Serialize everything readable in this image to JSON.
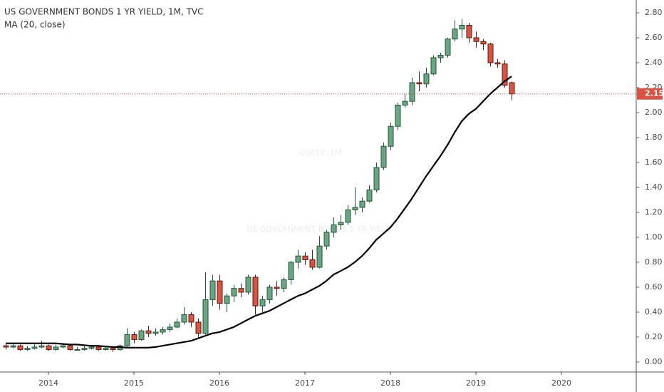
{
  "chart_data": {
    "type": "candlestick",
    "title": "US GOVERNMENT BONDS 1 YR YIELD, 1M, TVC",
    "watermark": [
      "US01Y, 1M",
      "US GOVERNMENT BONDS 1 YR YIELD"
    ],
    "x": [
      2013.5,
      2013.583,
      2013.667,
      2013.75,
      2013.833,
      2013.917,
      2014,
      2014.083,
      2014.167,
      2014.25,
      2014.333,
      2014.417,
      2014.5,
      2014.583,
      2014.667,
      2014.75,
      2014.833,
      2014.917,
      2015,
      2015.083,
      2015.167,
      2015.25,
      2015.333,
      2015.417,
      2015.5,
      2015.583,
      2015.667,
      2015.75,
      2015.833,
      2015.917,
      2016,
      2016.083,
      2016.167,
      2016.25,
      2016.333,
      2016.417,
      2016.5,
      2016.583,
      2016.667,
      2016.75,
      2016.833,
      2016.917,
      2017,
      2017.083,
      2017.167,
      2017.25,
      2017.333,
      2017.417,
      2017.5,
      2017.583,
      2017.667,
      2017.75,
      2017.833,
      2017.917,
      2018,
      2018.083,
      2018.167,
      2018.25,
      2018.333,
      2018.417,
      2018.5,
      2018.583,
      2018.667,
      2018.75,
      2018.833,
      2018.917,
      2019,
      2019.083,
      2019.167,
      2019.25,
      2019.333,
      2019.417
    ],
    "open": [
      0.13,
      0.12,
      0.13,
      0.1,
      0.11,
      0.12,
      0.13,
      0.1,
      0.12,
      0.13,
      0.1,
      0.1,
      0.11,
      0.12,
      0.1,
      0.11,
      0.1,
      0.13,
      0.22,
      0.18,
      0.25,
      0.23,
      0.24,
      0.26,
      0.28,
      0.32,
      0.38,
      0.32,
      0.23,
      0.5,
      0.65,
      0.47,
      0.53,
      0.59,
      0.56,
      0.68,
      0.45,
      0.5,
      0.6,
      0.59,
      0.66,
      0.8,
      0.85,
      0.82,
      0.76,
      0.93,
      1.04,
      1.1,
      1.12,
      1.22,
      1.24,
      1.29,
      1.38,
      1.56,
      1.73,
      1.89,
      2.06,
      2.09,
      2.24,
      2.23,
      2.31,
      2.44,
      2.46,
      2.59,
      2.67,
      2.7,
      2.6,
      2.57,
      2.55,
      2.4,
      2.39,
      2.24
    ],
    "high": [
      0.15,
      0.15,
      0.14,
      0.13,
      0.14,
      0.17,
      0.14,
      0.14,
      0.15,
      0.14,
      0.12,
      0.13,
      0.13,
      0.13,
      0.13,
      0.12,
      0.14,
      0.27,
      0.24,
      0.26,
      0.29,
      0.27,
      0.28,
      0.31,
      0.35,
      0.44,
      0.4,
      0.35,
      0.72,
      0.7,
      0.7,
      0.55,
      0.62,
      0.63,
      0.7,
      0.7,
      0.53,
      0.62,
      0.65,
      0.68,
      0.81,
      0.9,
      0.88,
      0.9,
      1.01,
      1.06,
      1.16,
      1.18,
      1.26,
      1.4,
      1.32,
      1.42,
      1.6,
      1.76,
      1.92,
      2.08,
      2.15,
      2.28,
      2.33,
      2.36,
      2.46,
      2.48,
      2.6,
      2.74,
      2.75,
      2.72,
      2.65,
      2.59,
      2.56,
      2.43,
      2.42,
      2.25
    ],
    "low": [
      0.1,
      0.11,
      0.09,
      0.09,
      0.1,
      0.11,
      0.09,
      0.09,
      0.11,
      0.09,
      0.09,
      0.09,
      0.1,
      0.09,
      0.09,
      0.08,
      0.09,
      0.12,
      0.15,
      0.17,
      0.2,
      0.21,
      0.22,
      0.24,
      0.27,
      0.3,
      0.28,
      0.2,
      0.22,
      0.45,
      0.42,
      0.4,
      0.48,
      0.52,
      0.54,
      0.38,
      0.4,
      0.47,
      0.53,
      0.56,
      0.62,
      0.75,
      0.78,
      0.74,
      0.75,
      0.9,
      1.0,
      1.06,
      1.1,
      1.18,
      1.2,
      1.28,
      1.36,
      1.54,
      1.7,
      1.86,
      2.04,
      2.06,
      2.17,
      2.2,
      2.3,
      2.4,
      2.44,
      2.57,
      2.6,
      2.56,
      2.52,
      2.5,
      2.37,
      2.36,
      2.2,
      2.1
    ],
    "close": [
      0.12,
      0.13,
      0.1,
      0.11,
      0.12,
      0.13,
      0.1,
      0.12,
      0.13,
      0.1,
      0.1,
      0.11,
      0.12,
      0.1,
      0.11,
      0.1,
      0.13,
      0.22,
      0.18,
      0.25,
      0.23,
      0.24,
      0.26,
      0.28,
      0.32,
      0.38,
      0.32,
      0.23,
      0.5,
      0.65,
      0.47,
      0.53,
      0.59,
      0.56,
      0.68,
      0.45,
      0.5,
      0.6,
      0.59,
      0.66,
      0.8,
      0.85,
      0.82,
      0.76,
      0.93,
      1.04,
      1.1,
      1.12,
      1.22,
      1.24,
      1.29,
      1.38,
      1.56,
      1.73,
      1.89,
      2.06,
      2.09,
      2.24,
      2.23,
      2.31,
      2.44,
      2.46,
      2.59,
      2.67,
      2.7,
      2.6,
      2.57,
      2.55,
      2.4,
      2.39,
      2.22,
      2.15
    ],
    "up_color": "#6ba583",
    "up_border": "#225437",
    "down_color": "#d75442",
    "down_border": "#5b1a13",
    "series": [
      {
        "name": "MA (20, close)",
        "color": "#000000",
        "values": [
          0.15,
          0.15,
          0.15,
          0.15,
          0.15,
          0.15,
          0.15,
          0.15,
          0.145,
          0.14,
          0.14,
          0.135,
          0.13,
          0.13,
          0.125,
          0.12,
          0.12,
          0.115,
          0.115,
          0.115,
          0.115,
          0.12,
          0.13,
          0.14,
          0.15,
          0.16,
          0.17,
          0.19,
          0.21,
          0.23,
          0.24,
          0.26,
          0.28,
          0.31,
          0.34,
          0.37,
          0.39,
          0.41,
          0.44,
          0.47,
          0.5,
          0.53,
          0.55,
          0.58,
          0.61,
          0.65,
          0.7,
          0.73,
          0.76,
          0.8,
          0.85,
          0.91,
          0.98,
          1.03,
          1.08,
          1.15,
          1.23,
          1.31,
          1.4,
          1.49,
          1.57,
          1.65,
          1.74,
          1.84,
          1.93,
          1.99,
          2.03,
          2.09,
          2.15,
          2.2,
          2.25,
          2.29
        ]
      }
    ],
    "last_price": 2.15,
    "last_color": "#d75442",
    "xlim": [
      2013.433,
      2020.875
    ],
    "xticks": [
      2014,
      2015,
      2016,
      2017,
      2018,
      2019,
      2020
    ],
    "ylim": [
      -0.0804,
      2.9028
    ],
    "yticks": [
      {
        "value": 0,
        "label": "0.00"
      },
      {
        "value": 0.2,
        "label": "0.20"
      },
      {
        "value": 0.4,
        "label": "0.40"
      },
      {
        "value": 0.6,
        "label": "0.60"
      },
      {
        "value": 0.8,
        "label": "0.80"
      },
      {
        "value": 1.0,
        "label": "1.00"
      },
      {
        "value": 1.2,
        "label": "1.20"
      },
      {
        "value": 1.4,
        "label": "1.40"
      },
      {
        "value": 1.6,
        "label": "1.60"
      },
      {
        "value": 1.8,
        "label": "1.80"
      },
      {
        "value": 2.0,
        "label": "2.00"
      },
      {
        "value": 2.2,
        "label": "2.20"
      },
      {
        "value": 2.4,
        "label": "2.40"
      },
      {
        "value": 2.6,
        "label": "2.60"
      },
      {
        "value": 2.8,
        "label": "2.80"
      }
    ]
  }
}
